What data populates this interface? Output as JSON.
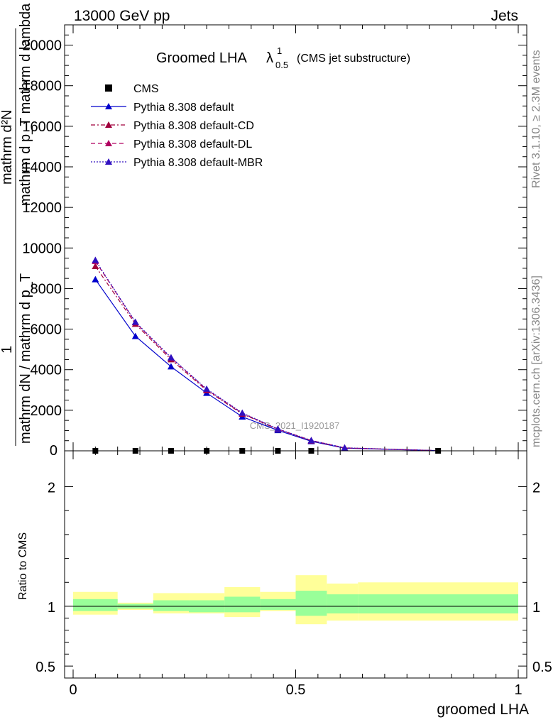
{
  "header": {
    "left": "13000 GeV pp",
    "right": "Jets"
  },
  "title": {
    "main": "Groomed LHA",
    "lambda": "λ",
    "sup": "1",
    "sub": "0.5",
    "suffix": "(CMS jet substructure)"
  },
  "side_labels": {
    "rivet": "Rivet 3.1.10, ≥ 2.3M events",
    "mcplots": "mcplots.cern.ch [arXiv:1306.3436]"
  },
  "watermark": "CMS_2021_I1920187",
  "chart_data": [
    {
      "type": "line",
      "panel": "main",
      "ylabel": "1 / mathrm dN / mathrm d p_T mathrm d^2N / mathrm d p_T mathrm d lambda",
      "ylabel_top": "mathrm d²N",
      "ylabel_top2": "mathrm d p_T mathrm d lambda",
      "ylabel_one": "1",
      "ylabel_bottom": "mathrm dN / mathrm d p_T",
      "xlim": [
        0,
        1
      ],
      "ylim": [
        0,
        21000
      ],
      "y_ticks": [
        {
          "value": 2000,
          "label": "2000"
        },
        {
          "value": 4000,
          "label": "4000"
        },
        {
          "value": 6000,
          "label": "6000"
        },
        {
          "value": 8000,
          "label": "8000"
        },
        {
          "value": 10000,
          "label": "10000"
        },
        {
          "value": 12000,
          "label": "12000"
        },
        {
          "value": 14000,
          "label": "14000"
        },
        {
          "value": 16000,
          "label": "16000"
        },
        {
          "value": 18000,
          "label": "18000"
        },
        {
          "value": 20000,
          "label": "20000"
        }
      ],
      "y_zero_label": "0",
      "legend_position": "top-left",
      "cms": {
        "name": "CMS",
        "x": [
          0.05,
          0.14,
          0.22,
          0.3,
          0.38,
          0.46,
          0.535,
          0.82
        ],
        "y": [
          0,
          0,
          0,
          0,
          0,
          0,
          0,
          0
        ]
      },
      "series": [
        {
          "name": "Pythia 8.308 default",
          "color": "#0000cc",
          "dash": "solid",
          "x": [
            0.05,
            0.14,
            0.22,
            0.3,
            0.38,
            0.46,
            0.535,
            0.61,
            0.82
          ],
          "y": [
            8450,
            5650,
            4150,
            2850,
            1680,
            1010,
            470,
            130,
            10
          ]
        },
        {
          "name": "Pythia 8.308 default-CD",
          "color": "#a0003c",
          "dash": "dashdot",
          "x": [
            0.05,
            0.14,
            0.22,
            0.3,
            0.38,
            0.46,
            0.535,
            0.61,
            0.82
          ],
          "y": [
            9100,
            6250,
            4500,
            2980,
            1820,
            1060,
            500,
            140,
            10
          ]
        },
        {
          "name": "Pythia 8.308 default-DL",
          "color": "#b00060",
          "dash": "dashed",
          "x": [
            0.05,
            0.14,
            0.22,
            0.3,
            0.38,
            0.46,
            0.535,
            0.61,
            0.82
          ],
          "y": [
            9350,
            6330,
            4580,
            3020,
            1850,
            1070,
            510,
            145,
            10
          ]
        },
        {
          "name": "Pythia 8.308 default-MBR",
          "color": "#3010c0",
          "dash": "dotted",
          "x": [
            0.05,
            0.14,
            0.22,
            0.3,
            0.38,
            0.46,
            0.535,
            0.61,
            0.82
          ],
          "y": [
            9400,
            6350,
            4600,
            3050,
            1870,
            1080,
            515,
            150,
            10
          ]
        }
      ]
    },
    {
      "type": "area",
      "panel": "ratio",
      "ylabel": "Ratio to CMS",
      "xlabel": "groomed LHA",
      "xlim": [
        0,
        1
      ],
      "ylim": [
        0.4,
        2.3
      ],
      "y_ticks": [
        {
          "value": 0.5,
          "label": "0.5"
        },
        {
          "value": 1,
          "label": "1"
        },
        {
          "value": 2,
          "label": "2"
        }
      ],
      "x_ticks": [
        {
          "value": 0,
          "label": "0"
        },
        {
          "value": 0.5,
          "label": "0.5"
        },
        {
          "value": 1,
          "label": "1"
        }
      ],
      "reference_line": 1,
      "bands": [
        {
          "x0": 0.0,
          "x1": 0.1,
          "inner": [
            0.96,
            1.06
          ],
          "outer": [
            0.93,
            1.12
          ]
        },
        {
          "x0": 0.1,
          "x1": 0.18,
          "inner": [
            0.98,
            1.02
          ],
          "outer": [
            0.97,
            1.03
          ]
        },
        {
          "x0": 0.18,
          "x1": 0.26,
          "inner": [
            0.96,
            1.05
          ],
          "outer": [
            0.94,
            1.11
          ]
        },
        {
          "x0": 0.26,
          "x1": 0.34,
          "inner": [
            0.95,
            1.05
          ],
          "outer": [
            0.94,
            1.11
          ]
        },
        {
          "x0": 0.34,
          "x1": 0.42,
          "inner": [
            0.95,
            1.08
          ],
          "outer": [
            0.91,
            1.16
          ]
        },
        {
          "x0": 0.42,
          "x1": 0.5,
          "inner": [
            0.97,
            1.06
          ],
          "outer": [
            0.96,
            1.12
          ]
        },
        {
          "x0": 0.5,
          "x1": 0.57,
          "inner": [
            0.92,
            1.13
          ],
          "outer": [
            0.85,
            1.26
          ]
        },
        {
          "x0": 0.57,
          "x1": 0.64,
          "inner": [
            0.94,
            1.1
          ],
          "outer": [
            0.88,
            1.19
          ]
        },
        {
          "x0": 0.64,
          "x1": 1.0,
          "inner": [
            0.94,
            1.1
          ],
          "outer": [
            0.88,
            1.2
          ]
        }
      ],
      "colors": {
        "inner": "#99ff99",
        "outer": "#ffff99"
      }
    }
  ]
}
